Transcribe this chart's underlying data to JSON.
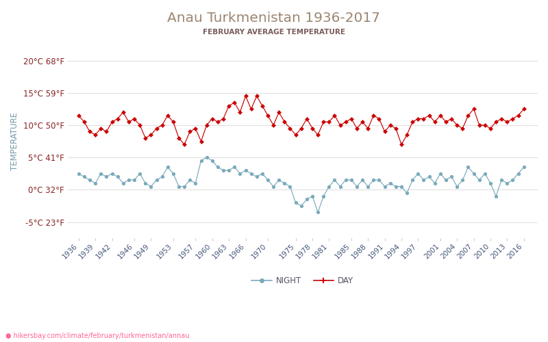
{
  "title": "Anau Turkmenistan 1936-2017",
  "subtitle": "FEBRUARY AVERAGE TEMPERATURE",
  "ylabel": "TEMPERATURE",
  "watermark": "hikersbay.com/climate/february/turkmenistan/annau",
  "yticks_c": [
    -5,
    0,
    5,
    10,
    15,
    20
  ],
  "yticks_f": [
    23,
    32,
    41,
    50,
    59,
    68
  ],
  "ylim": [
    -7.5,
    22.5
  ],
  "xlim_left": 1934.0,
  "xlim_right": 2018.5,
  "xtick_years": [
    1936,
    1939,
    1942,
    1946,
    1949,
    1953,
    1957,
    1960,
    1963,
    1966,
    1970,
    1975,
    1978,
    1981,
    1985,
    1988,
    1991,
    1994,
    1997,
    2001,
    2004,
    2007,
    2010,
    2013,
    2016
  ],
  "day_color": "#cc0000",
  "night_color": "#7aaabb",
  "title_color": "#9b8670",
  "subtitle_color": "#7a5a5a",
  "ylabel_color": "#7799aa",
  "ytick_color": "#882222",
  "xtick_color": "#445577",
  "grid_color": "#e0e0e0",
  "bg_color": "#ffffff",
  "watermark_color": "#ff6699",
  "day_years": [
    1936,
    1937,
    1938,
    1939,
    1940,
    1941,
    1942,
    1943,
    1944,
    1945,
    1946,
    1947,
    1948,
    1949,
    1950,
    1951,
    1952,
    1953,
    1954,
    1955,
    1956,
    1957,
    1958,
    1959,
    1960,
    1961,
    1962,
    1963,
    1964,
    1965,
    1966,
    1967,
    1968,
    1969,
    1970,
    1971,
    1972,
    1973,
    1974,
    1975,
    1976,
    1977,
    1978,
    1979,
    1980,
    1981,
    1982,
    1983,
    1984,
    1985,
    1986,
    1987,
    1988,
    1989,
    1990,
    1991,
    1992,
    1993,
    1994,
    1995,
    1996,
    1997,
    1998,
    1999,
    2000,
    2001,
    2002,
    2003,
    2004,
    2005,
    2006,
    2007,
    2008,
    2009,
    2010,
    2011,
    2012,
    2013,
    2014,
    2015,
    2016
  ],
  "day_vals": [
    11.5,
    10.5,
    9.0,
    8.5,
    9.5,
    9.0,
    10.5,
    11.0,
    12.0,
    10.5,
    11.0,
    10.0,
    8.0,
    8.5,
    9.5,
    10.0,
    11.5,
    10.5,
    8.0,
    7.0,
    9.0,
    9.5,
    7.5,
    10.0,
    11.0,
    10.5,
    11.0,
    13.0,
    13.5,
    12.0,
    14.5,
    12.5,
    14.5,
    13.0,
    11.5,
    10.0,
    12.0,
    10.5,
    9.5,
    8.5,
    9.5,
    11.0,
    9.5,
    8.5,
    10.5,
    10.5,
    11.5,
    10.0,
    10.5,
    11.0,
    9.5,
    10.5,
    9.5,
    11.5,
    11.0,
    9.0,
    10.0,
    9.5,
    7.0,
    8.5,
    10.5,
    11.0,
    11.0,
    11.5,
    10.5,
    11.5,
    10.5,
    11.0,
    10.0,
    9.5,
    11.5,
    12.5,
    10.0,
    10.0,
    9.5,
    10.5,
    11.0,
    10.5,
    11.0,
    11.5,
    12.5
  ],
  "night_years": [
    1936,
    1937,
    1938,
    1939,
    1940,
    1941,
    1942,
    1943,
    1944,
    1945,
    1946,
    1947,
    1948,
    1949,
    1950,
    1951,
    1952,
    1953,
    1954,
    1955,
    1956,
    1957,
    1958,
    1959,
    1960,
    1961,
    1962,
    1963,
    1964,
    1965,
    1966,
    1967,
    1968,
    1969,
    1970,
    1971,
    1972,
    1973,
    1974,
    1975,
    1976,
    1977,
    1978,
    1979,
    1980,
    1981,
    1982,
    1983,
    1984,
    1985,
    1986,
    1987,
    1988,
    1989,
    1990,
    1991,
    1992,
    1993,
    1994,
    1995,
    1996,
    1997,
    1998,
    1999,
    2000,
    2001,
    2002,
    2003,
    2004,
    2005,
    2006,
    2007,
    2008,
    2009,
    2010,
    2011,
    2012,
    2013,
    2014,
    2015,
    2016
  ],
  "night_vals": [
    2.5,
    2.0,
    1.5,
    1.0,
    2.5,
    2.0,
    2.5,
    2.0,
    1.0,
    1.5,
    1.5,
    2.5,
    1.0,
    0.5,
    1.5,
    2.0,
    3.5,
    2.5,
    0.5,
    0.5,
    1.5,
    1.0,
    4.5,
    5.0,
    4.5,
    3.5,
    3.0,
    3.0,
    3.5,
    2.5,
    3.0,
    2.5,
    2.0,
    2.5,
    1.5,
    0.5,
    1.5,
    1.0,
    0.5,
    -2.0,
    -2.5,
    -1.5,
    -1.0,
    -3.5,
    -1.0,
    0.5,
    1.5,
    0.5,
    1.5,
    1.5,
    0.5,
    1.5,
    0.5,
    1.5,
    1.5,
    0.5,
    1.0,
    0.5,
    0.5,
    -0.5,
    1.5,
    2.5,
    1.5,
    2.0,
    1.0,
    2.5,
    1.5,
    2.0,
    0.5,
    1.5,
    3.5,
    2.5,
    1.5,
    2.5,
    1.0,
    -1.0,
    1.5,
    1.0,
    1.5,
    2.5,
    3.5
  ]
}
